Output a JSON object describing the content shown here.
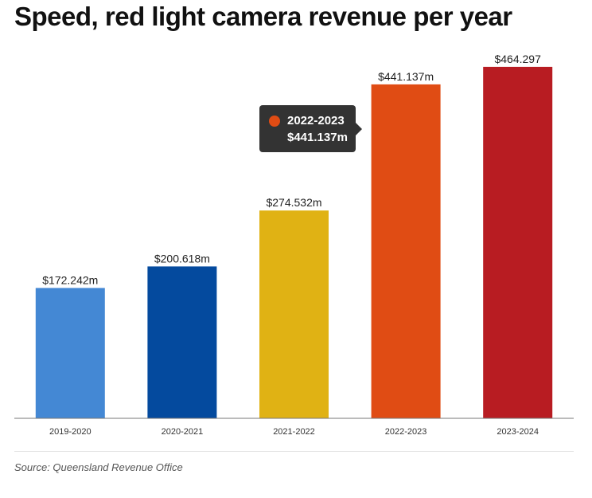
{
  "title": "Speed, red light camera revenue per year",
  "source": "Source: Queensland Revenue Office",
  "tooltip": {
    "category": "2022-2023",
    "value": "$441.137m",
    "dot_color": "#e04c14"
  },
  "chart_data": {
    "type": "bar",
    "title": "Speed, red light camera revenue per year",
    "xlabel": "",
    "ylabel": "",
    "ylim": [
      0,
      500
    ],
    "grid": false,
    "categories": [
      "2019-2020",
      "2020-2021",
      "2021-2022",
      "2022-2023",
      "2023-2024"
    ],
    "values": [
      172.242,
      200.618,
      274.532,
      441.137,
      464.297
    ],
    "data_labels": [
      "$172.242m",
      "$200.618m",
      "$274.532m",
      "$441.137m",
      "$464.297"
    ],
    "colors": [
      "#4488d4",
      "#044a9e",
      "#e0b214",
      "#e04c14",
      "#b81c22"
    ]
  }
}
